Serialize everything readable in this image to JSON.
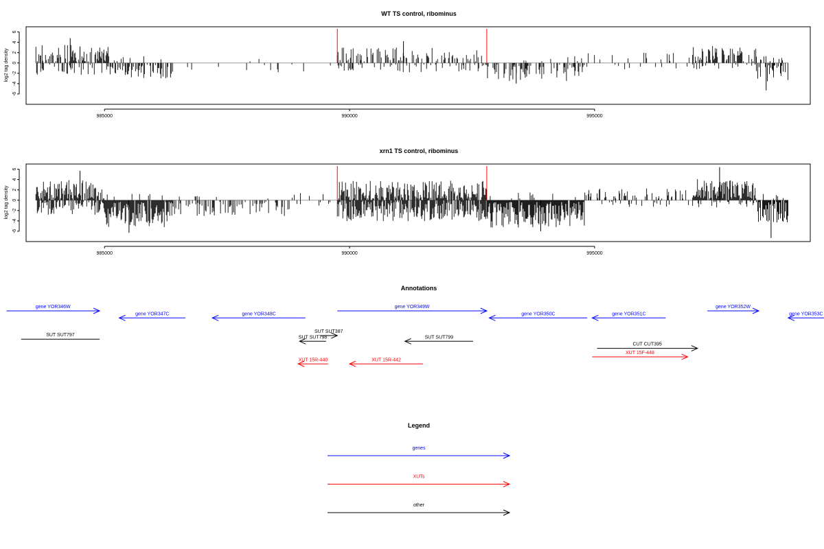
{
  "chart_data": [
    {
      "type": "bar",
      "title": "WT TS control, ribominus",
      "ylabel": "log2 tag density",
      "xlabel": "",
      "xlim": [
        983400,
        999400
      ],
      "ylim": [
        -8,
        7
      ],
      "yticks": [
        -6,
        -4,
        -2,
        0,
        2,
        4,
        6
      ],
      "xticks": [
        985000,
        990000,
        995000
      ],
      "grid": false,
      "markers": [
        989750,
        992800
      ],
      "seed": 7,
      "profile": [
        {
          "from": 983600,
          "to": 985100,
          "up_density": 0.55,
          "up_max": 3.2,
          "down_density": 0.25,
          "down_max": 2.0
        },
        {
          "from": 985100,
          "to": 986400,
          "up_density": 0.05,
          "up_max": 1.0,
          "down_density": 0.5,
          "down_max": 3.0
        },
        {
          "from": 986400,
          "to": 989750,
          "up_density": 0.01,
          "up_max": 1.0,
          "down_density": 0.03,
          "down_max": 1.5
        },
        {
          "from": 989750,
          "to": 992800,
          "up_density": 0.35,
          "up_max": 2.8,
          "down_density": 0.2,
          "down_max": 1.6
        },
        {
          "from": 992800,
          "to": 994800,
          "up_density": 0.05,
          "up_max": 1.0,
          "down_density": 0.45,
          "down_max": 3.2
        },
        {
          "from": 994800,
          "to": 997000,
          "up_density": 0.12,
          "up_max": 1.8,
          "down_density": 0.04,
          "down_max": 1.0
        },
        {
          "from": 997000,
          "to": 998300,
          "up_density": 0.5,
          "up_max": 3.0,
          "down_density": 0.08,
          "down_max": 1.0
        },
        {
          "from": 998300,
          "to": 998950,
          "up_density": 0.1,
          "up_max": 1.0,
          "down_density": 0.55,
          "down_max": 3.5
        }
      ],
      "peaks": [
        [
          984300,
          4.8
        ],
        [
          984500,
          3.2
        ],
        [
          998500,
          -5.3
        ],
        [
          991100,
          4.2
        ],
        [
          993400,
          -4.0
        ]
      ]
    },
    {
      "type": "bar",
      "title": "xrn1 TS control, ribominus",
      "ylabel": "log2 tag density",
      "xlabel": "",
      "xlim": [
        983400,
        999400
      ],
      "ylim": [
        -8,
        7
      ],
      "yticks": [
        -6,
        -4,
        -2,
        0,
        2,
        4,
        6
      ],
      "xticks": [
        985000,
        990000,
        995000
      ],
      "grid": false,
      "markers": [
        989750,
        992800
      ],
      "seed": 23,
      "profile": [
        {
          "from": 983600,
          "to": 985000,
          "up_density": 0.8,
          "up_max": 3.6,
          "down_density": 0.5,
          "down_max": 2.5
        },
        {
          "from": 985000,
          "to": 986400,
          "up_density": 0.05,
          "up_max": 1.0,
          "down_density": 0.95,
          "down_max": 5.2
        },
        {
          "from": 986400,
          "to": 988800,
          "up_density": 0.05,
          "up_max": 1.0,
          "down_density": 0.35,
          "down_max": 2.8
        },
        {
          "from": 988800,
          "to": 989750,
          "up_density": 0.08,
          "up_max": 2.0,
          "down_density": 0.1,
          "down_max": 1.0
        },
        {
          "from": 989750,
          "to": 992800,
          "up_density": 0.75,
          "up_max": 3.5,
          "down_density": 0.8,
          "down_max": 3.8
        },
        {
          "from": 992800,
          "to": 994800,
          "up_density": 0.1,
          "up_max": 1.2,
          "down_density": 0.95,
          "down_max": 5.0
        },
        {
          "from": 994800,
          "to": 997000,
          "up_density": 0.2,
          "up_max": 2.0,
          "down_density": 0.1,
          "down_max": 1.2
        },
        {
          "from": 997000,
          "to": 998300,
          "up_density": 0.9,
          "up_max": 3.8,
          "down_density": 0.2,
          "down_max": 1.5
        },
        {
          "from": 998300,
          "to": 998950,
          "up_density": 0.1,
          "up_max": 1.0,
          "down_density": 0.75,
          "down_max": 4.0
        }
      ],
      "peaks": [
        [
          984500,
          5.7
        ],
        [
          985500,
          -6.3
        ],
        [
          997550,
          6.4
        ],
        [
          998600,
          -7.3
        ],
        [
          993900,
          -6.0
        ]
      ]
    }
  ],
  "annotations": {
    "title": "Annotations",
    "features": [
      {
        "label": "gene YOR346W",
        "color": "#0000ff",
        "start": 983000,
        "end": 984900,
        "strand": "+",
        "row": 0
      },
      {
        "label": "gene YOR347C",
        "color": "#0000ff",
        "start": 985300,
        "end": 986650,
        "strand": "-",
        "row": 1
      },
      {
        "label": "gene YOR348C",
        "color": "#0000ff",
        "start": 987200,
        "end": 989100,
        "strand": "-",
        "row": 1
      },
      {
        "label": "gene YOR349W",
        "color": "#0000ff",
        "start": 989750,
        "end": 992800,
        "strand": "+",
        "row": 0
      },
      {
        "label": "gene YOR350C",
        "color": "#0000ff",
        "start": 992850,
        "end": 994850,
        "strand": "-",
        "row": 1
      },
      {
        "label": "gene YOR351C",
        "color": "#0000ff",
        "start": 994950,
        "end": 996450,
        "strand": "-",
        "row": 1
      },
      {
        "label": "gene YOR352W",
        "color": "#0000ff",
        "start": 997300,
        "end": 998350,
        "strand": "+",
        "row": 0
      },
      {
        "label": "gene YOR353C",
        "color": "#0000ff",
        "start": 998950,
        "end": 1000800,
        "strand": "-",
        "row": 1
      },
      {
        "label": "SUT SUT797",
        "color": "#000000",
        "start": 983300,
        "end": 984900,
        "strand": "none",
        "row": 4
      },
      {
        "label": "SUT SUT387",
        "color": "#000000",
        "start": 989400,
        "end": 989750,
        "strand": "+",
        "row": 3.5
      },
      {
        "label": "SUT SUT798",
        "color": "#000000",
        "start": 988980,
        "end": 989520,
        "strand": "-",
        "row": 4.3
      },
      {
        "label": "SUT SUT799",
        "color": "#000000",
        "start": 991130,
        "end": 992520,
        "strand": "-",
        "row": 4.3
      },
      {
        "label": "CUT CUT395",
        "color": "#000000",
        "start": 995050,
        "end": 997100,
        "strand": "+",
        "row": 5.3
      },
      {
        "label": "XUT 15R-440",
        "color": "#ff0000",
        "start": 988950,
        "end": 989560,
        "strand": "-",
        "row": 7.5
      },
      {
        "label": "XUT 15R-442",
        "color": "#ff0000",
        "start": 990000,
        "end": 991500,
        "strand": "-",
        "row": 7.5
      },
      {
        "label": "XUT 15F-448",
        "color": "#ff0000",
        "start": 994950,
        "end": 996900,
        "strand": "+",
        "row": 6.5
      }
    ]
  },
  "legend": {
    "title": "Legend",
    "entries": [
      {
        "label": "genes",
        "color": "#0000ff"
      },
      {
        "label": "XUTs",
        "color": "#ff0000"
      },
      {
        "label": "other",
        "color": "#000000"
      }
    ]
  }
}
